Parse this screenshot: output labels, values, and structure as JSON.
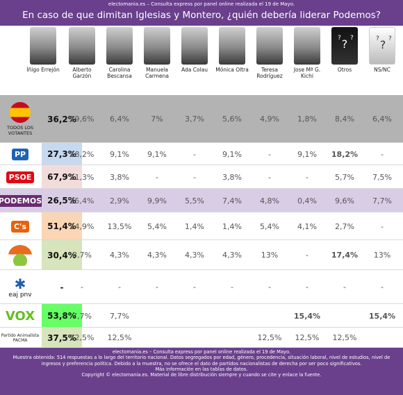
{
  "header": {
    "source_line": "electomania.es – Consulta express por panel online realizada el 19 de Mayo.",
    "title": "En caso de que dimitan Iglesias y Montero, ¿quién debería liderar Podemos?"
  },
  "footer": {
    "line1": "electomania.es – Consulta express por panel online realizada el 19 de Mayo.",
    "line2": "Muestra obtenida: 514 respuestas a lo largo del territorio nacional. Datos segregados por edad, género, procedencia, situación laboral, nivel de estudios, nivel de ingresos y preferencia política. Debido a la muestra, no se ofrece el dato de partidos nacionalistas de derecha por ser poco significativos.",
    "line3": "Más información en las tablas de datos.",
    "line4": "Copyright © electomania.es. Material de libre distribución siempre y cuando se cite y enlace la fuente."
  },
  "chart_data": {
    "type": "table",
    "title": "En caso de que dimitan Iglesias y Montero, ¿quién debería liderar Podemos?",
    "columns": [
      "Íñigo Errejón",
      "Alberto Garzón",
      "Carolina Bescansa",
      "Manuela Carmena",
      "Ada Colau",
      "Mónica Oltra",
      "Teresa Rodríguez",
      "Jose Mª G. Kichi",
      "Otros",
      "NS/NC"
    ],
    "rows": [
      {
        "group": "TODOS LOS VOTANTES",
        "icon": "spain-flag-icon",
        "label": "TODOS LOS VOTANTES",
        "values": [
          "36,2%",
          "19,6%",
          "6,4%",
          "7%",
          "3,7%",
          "5,6%",
          "4,9%",
          "1,8%",
          "8,4%",
          "6,4%"
        ]
      },
      {
        "group": "PP",
        "icon": "pp-logo",
        "label": "PP",
        "values": [
          "27,3%",
          "18,2%",
          "9,1%",
          "9,1%",
          "-",
          "9,1%",
          "-",
          "9,1%",
          "18,2%",
          "-"
        ]
      },
      {
        "group": "PSOE",
        "icon": "psoe-logo",
        "label": "PSOE",
        "values": [
          "67,9%",
          "11,3%",
          "3,8%",
          "-",
          "-",
          "3,8%",
          "-",
          "-",
          "5,7%",
          "7,5%"
        ]
      },
      {
        "group": "PODEMOS",
        "icon": "podemos-logo",
        "label": "PODEMOS",
        "values": [
          "26,5%",
          "25,4%",
          "2,9%",
          "9,9%",
          "5,5%",
          "7,4%",
          "4,8%",
          "0,4%",
          "9,6%",
          "7,7%"
        ]
      },
      {
        "group": "C's",
        "icon": "cs-logo",
        "label": "C's",
        "values": [
          "51,4%",
          "14,9%",
          "13,5%",
          "5,4%",
          "1,4%",
          "1,4%",
          "5,4%",
          "4,1%",
          "2,7%",
          "-"
        ]
      },
      {
        "group": "Compromís",
        "icon": "compromis-logo",
        "label": "",
        "values": [
          "30,4%",
          "8,7%",
          "4,3%",
          "4,3%",
          "4,3%",
          "4,3%",
          "13%",
          "-",
          "17,4%",
          "13%"
        ]
      },
      {
        "group": "PNV",
        "icon": "pnv-logo",
        "label": "eaj pnv",
        "values": [
          "-",
          "-",
          "-",
          "-",
          "-",
          "-",
          "-",
          "-",
          "-",
          "-"
        ]
      },
      {
        "group": "VOX",
        "icon": "vox-logo",
        "label": "VOX",
        "values": [
          "53,8%",
          "7,7%",
          "7,7%",
          "",
          "",
          "",
          "",
          "15,4%",
          "",
          "15,4%"
        ]
      },
      {
        "group": "PACMA",
        "icon": "pacma-logo",
        "label": "Partido Animalista PACMA",
        "values": [
          "37,5%",
          "12,5%",
          "12,5%",
          "",
          "",
          "",
          "12,5%",
          "12,5%",
          "12,5%",
          ""
        ]
      }
    ],
    "row_colors": [
      "#b3b3b3",
      "#ffffff",
      "#ffffff",
      "#d9cde6",
      "#ffffff",
      "#ffffff",
      "#ffffff",
      "#ffffff",
      "#ffffff"
    ],
    "lead_cell_colors": [
      "#b3b3b3",
      "#c6d9f0",
      "#f2dcdb",
      "#d9cde6",
      "#fbd5b5",
      "#d7e4bc",
      "#ffffff",
      "#66ff66",
      "#d7e4bc"
    ],
    "bold_cells": [
      [
        1,
        8
      ],
      [
        5,
        8
      ],
      [
        7,
        7
      ],
      [
        7,
        9
      ]
    ]
  },
  "colors": {
    "brand_purple": "#6a3f8c",
    "pp_blue": "#1d64b3",
    "psoe_red": "#e30613",
    "podemos_purple": "#6a2c70",
    "cs_orange": "#eb6109",
    "vox_green": "#63be21"
  }
}
